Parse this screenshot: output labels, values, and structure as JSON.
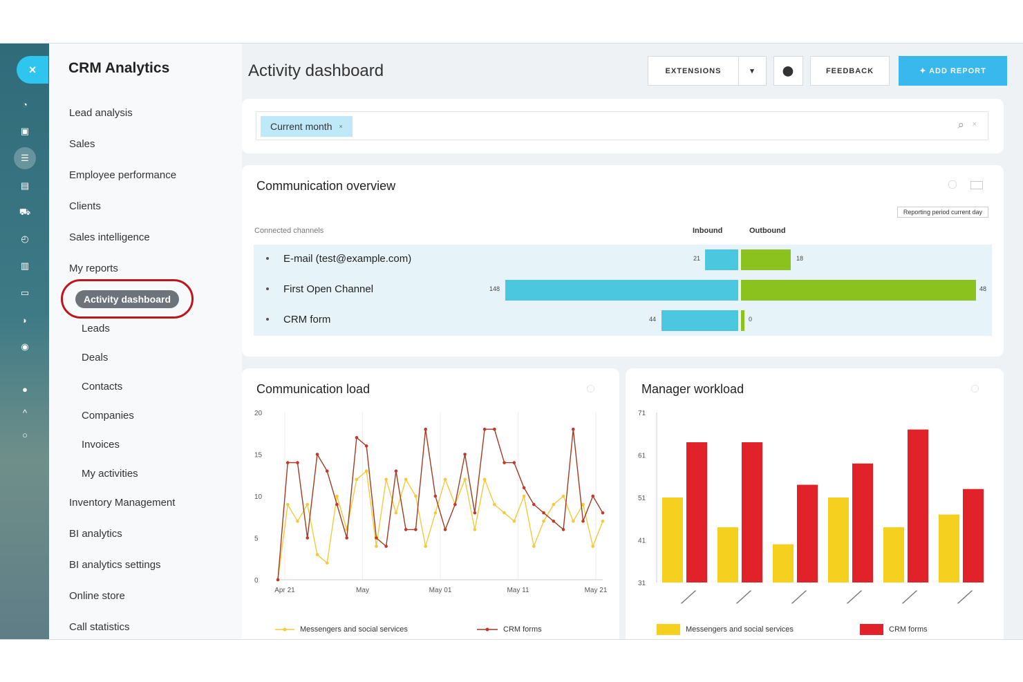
{
  "app": {
    "title": "CRM Analytics"
  },
  "rail": {
    "close_label": "×"
  },
  "menu": {
    "items": [
      "Lead analysis",
      "Sales",
      "Employee performance",
      "Clients",
      "Sales intelligence",
      "My reports"
    ],
    "active": "Activity dashboard",
    "sub_items": [
      "Leads",
      "Deals",
      "Contacts",
      "Companies",
      "Invoices",
      "My activities"
    ],
    "items_after": [
      "Inventory Management",
      "BI analytics",
      "BI analytics settings",
      "Online store",
      "Call statistics"
    ]
  },
  "header": {
    "title": "Activity dashboard",
    "extensions_label": "EXTENSIONS",
    "dropdown_label": "▾",
    "settings_label": "⬤",
    "feedback_label": "FEEDBACK",
    "add_report_label": "✦  ADD REPORT"
  },
  "filter": {
    "chip_label": "Current month",
    "chip_remove": "×",
    "search_icon": "⌕",
    "clear_icon": "×"
  },
  "communication_overview": {
    "title": "Communication overview",
    "col_channel": "Connected channels",
    "col_inbound": "Inbound",
    "col_outbound": "Outbound",
    "period_label": "Reporting period current day",
    "rows": [
      {
        "label": "E-mail (test@example.com)",
        "inbound": 21,
        "outbound": 18,
        "in_label": "21",
        "out_label": "18"
      },
      {
        "label": "First Open Channel",
        "inbound": 148,
        "outbound": 48,
        "in_label": "148",
        "out_label": "48"
      },
      {
        "label": "CRM form",
        "inbound": 44,
        "outbound": 0,
        "in_label": "44",
        "out_label": "0"
      }
    ],
    "colors": {
      "inbound": "#4cc7e0",
      "outbound": "#8cc21d"
    }
  },
  "communication_load": {
    "title": "Communication load",
    "legend_1": "Messengers and social services",
    "legend_2": "CRM forms",
    "yticks": [
      "20",
      "15",
      "10",
      "5",
      "0"
    ],
    "xticks": [
      "Apr 21",
      "May",
      "May 01",
      "May 11",
      "May 21"
    ],
    "colors": {
      "series_1": "#f5c93a",
      "series_2": "#a23a1e"
    }
  },
  "manager_workload": {
    "title": "Manager workload",
    "legend_1": "Messengers and social services",
    "legend_2": "CRM forms",
    "yticks": [
      "71",
      "61",
      "51",
      "41",
      "31"
    ],
    "colors": {
      "series_1": "#f5d01e",
      "series_2": "#e12228"
    }
  },
  "chart_data": [
    {
      "type": "line",
      "title": "Communication load",
      "x": [
        "Apr 21",
        "",
        "",
        "",
        "",
        "",
        "",
        "",
        "",
        "",
        "",
        "",
        "",
        "",
        "",
        "",
        "",
        "",
        "",
        "",
        "",
        "",
        "",
        "",
        "",
        "",
        "",
        "",
        "",
        "",
        "",
        "",
        "",
        "May 21"
      ],
      "ylim": [
        0,
        20
      ],
      "series": [
        {
          "name": "Messengers and social services",
          "values": [
            0,
            9,
            7,
            9,
            3,
            2,
            10,
            6,
            12,
            13,
            4,
            12,
            8,
            12,
            10,
            4,
            8,
            12,
            9,
            12,
            6,
            12,
            9,
            8,
            7,
            10,
            4,
            7,
            9,
            10,
            7,
            9,
            4,
            7
          ]
        },
        {
          "name": "CRM forms",
          "values": [
            0,
            14,
            14,
            5,
            15,
            13,
            9,
            5,
            17,
            16,
            5,
            4,
            13,
            6,
            6,
            18,
            10,
            6,
            9,
            15,
            8,
            18,
            18,
            14,
            14,
            11,
            9,
            8,
            7,
            6,
            18,
            7,
            10,
            8
          ]
        }
      ]
    },
    {
      "type": "bar",
      "title": "Manager workload",
      "categories": [
        "",
        "",
        "",
        "",
        "",
        ""
      ],
      "series": [
        {
          "name": "Messengers and social services",
          "values": [
            51,
            44,
            40,
            51,
            44,
            47
          ]
        },
        {
          "name": "CRM forms",
          "values": [
            64,
            64,
            54,
            59,
            67,
            53
          ]
        }
      ],
      "ylim": [
        31,
        71
      ]
    }
  ]
}
